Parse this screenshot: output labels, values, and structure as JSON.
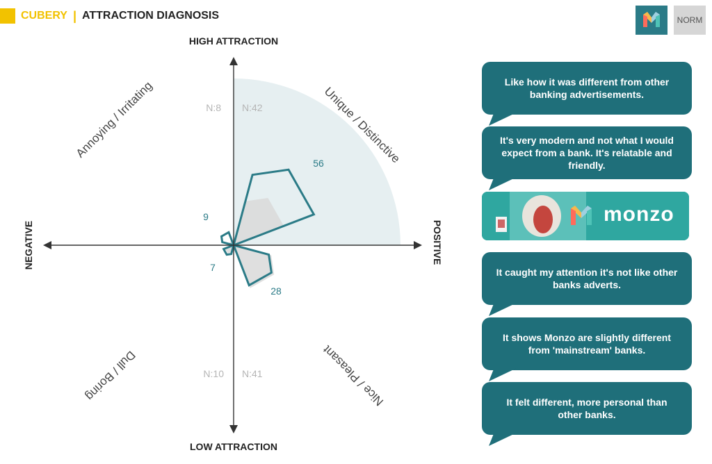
{
  "header": {
    "brand": "CUBERY",
    "separator": "|",
    "title": "ATTRACTION DIAGNOSIS"
  },
  "toolbar": {
    "logo_icon": "monzo-m-icon",
    "norm_label": "NORM"
  },
  "colors": {
    "accent": "#f2c200",
    "teal": "#2b7b87",
    "bubble": "#1f6f7a",
    "grey_fill": "#d9d9d9",
    "quadrant_fill": "#e6eff1"
  },
  "chart_data": {
    "type": "radar",
    "axes": {
      "top": "HIGH ATTRACTION",
      "bottom": "LOW ATTRACTION",
      "left": "NEGATIVE",
      "right": "POSITIVE"
    },
    "quadrant_labels": {
      "top_right": "Unique / Distinctive",
      "top_left": "Annoying / Irritating",
      "bottom_right": "Nice / Pleasant",
      "bottom_left": "Dull / Boring"
    },
    "sample_sizes": {
      "top_left": "N:8",
      "top_right": "N:42",
      "bottom_left": "N:10",
      "bottom_right": "N:41"
    },
    "values": {
      "top_right": 56,
      "top_left": 9,
      "bottom_right": 28,
      "bottom_left": 7
    },
    "value_labels": {
      "top_right": "56",
      "top_left": "9",
      "bottom_right": "28",
      "bottom_left": "7"
    },
    "norm_values": {
      "top_right": 35,
      "top_left": 3,
      "bottom_right": 30,
      "bottom_left": 6
    },
    "max": 100
  },
  "comments": [
    "Like how it was different from other banking advertisements.",
    "It's very modern and not what I would expect from a bank. It's relatable and friendly.",
    "It caught my attention it's not like other banks adverts.",
    "It shows Monzo are slightly different from 'mainstream' banks.",
    "It felt different, more personal than other banks."
  ],
  "banner": {
    "word": "monzo"
  }
}
